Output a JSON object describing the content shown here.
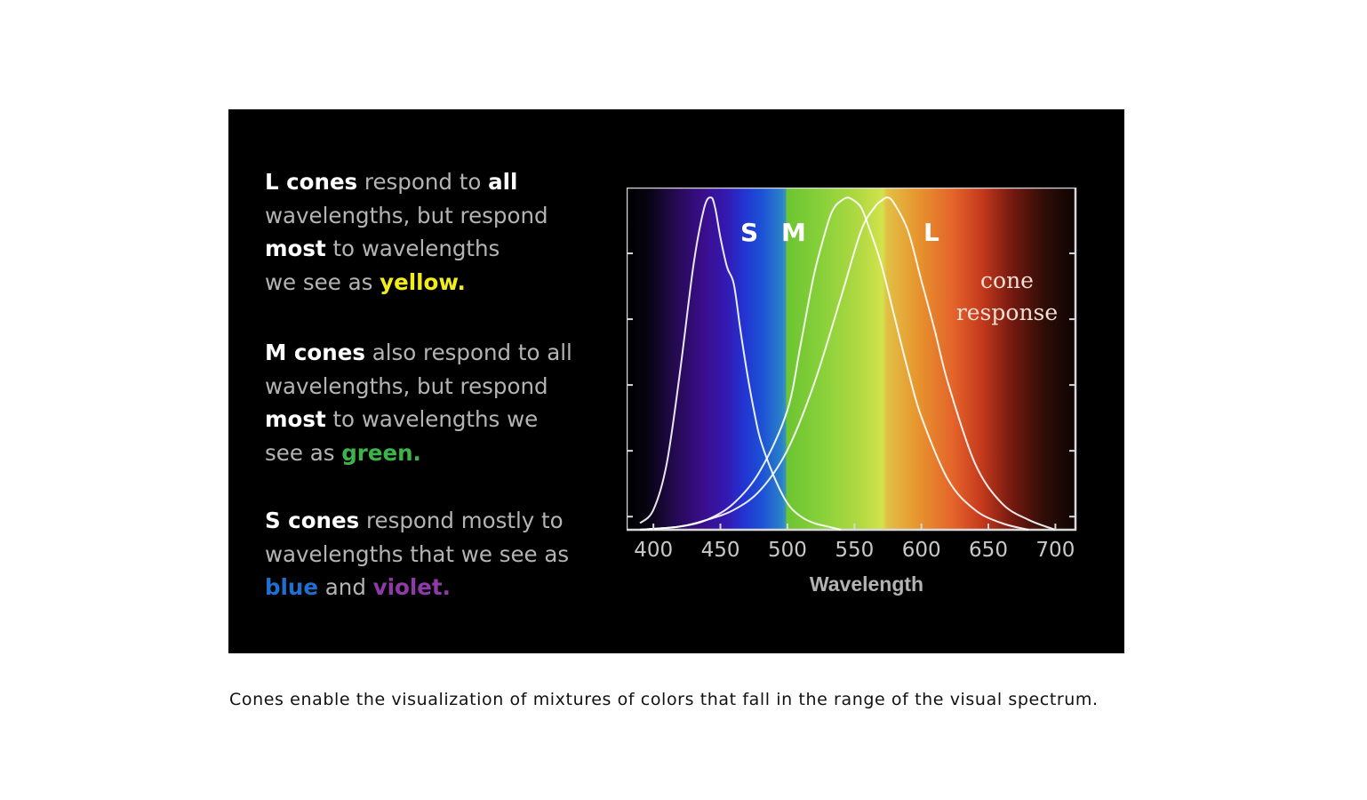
{
  "panel": {
    "l_para": {
      "l1_strong": "L cones",
      "l1_rest": " respond to ",
      "l1_all": "all",
      "l2": "wavelengths, but respond",
      "l3_strong": "most",
      "l3_rest": " to wavelengths",
      "l4_pre": "we see as ",
      "l4_color": "yellow."
    },
    "m_para": {
      "l1_strong": "M cones",
      "l1_rest": " also respond to all",
      "l2": "wavelengths, but respond",
      "l3_strong": "most",
      "l3_rest": " to wavelengths we",
      "l4_pre": "see as ",
      "l4_color": "green."
    },
    "s_para": {
      "l1_strong": "S cones",
      "l1_rest": " respond mostly to",
      "l2": "wavelengths that we see as",
      "l3_blue": "blue",
      "l3_and": " and ",
      "l3_violet": "violet."
    }
  },
  "colors": {
    "yellow": "#f2ec1a",
    "green": "#3cb44b",
    "blue": "#1f6fd1",
    "violet": "#8e3aa8",
    "curve": "#ffffff"
  },
  "chart_data": {
    "type": "line",
    "xlabel": "Wavelength",
    "xticks": [
      400,
      450,
      500,
      550,
      600,
      650,
      700
    ],
    "xlim": [
      380,
      715
    ],
    "ylim": [
      0,
      1.03
    ],
    "labels": {
      "s": "S",
      "m": "M",
      "l": "L",
      "annotation_line1": "cone",
      "annotation_line2": "response"
    },
    "spectrum_background": true,
    "series": [
      {
        "name": "S",
        "x": [
          390,
          400,
          410,
          420,
          430,
          438,
          443,
          446,
          450,
          455,
          460,
          465,
          470,
          475,
          480,
          490,
          500,
          510,
          520,
          530,
          540
        ],
        "y": [
          0.02,
          0.06,
          0.2,
          0.48,
          0.8,
          0.97,
          1.0,
          0.97,
          0.88,
          0.79,
          0.74,
          0.6,
          0.47,
          0.36,
          0.27,
          0.16,
          0.08,
          0.04,
          0.02,
          0.01,
          0.0
        ]
      },
      {
        "name": "M",
        "x": [
          390,
          420,
          440,
          460,
          480,
          500,
          510,
          520,
          530,
          535,
          540,
          545,
          550,
          555,
          560,
          570,
          580,
          590,
          600,
          620,
          640,
          660,
          680
        ],
        "y": [
          0.0,
          0.01,
          0.03,
          0.08,
          0.18,
          0.36,
          0.56,
          0.77,
          0.92,
          0.97,
          0.99,
          1.0,
          0.99,
          0.97,
          0.92,
          0.8,
          0.64,
          0.48,
          0.34,
          0.15,
          0.06,
          0.02,
          0.0
        ]
      },
      {
        "name": "L",
        "x": [
          390,
          420,
          440,
          460,
          480,
          500,
          520,
          540,
          555,
          565,
          570,
          575,
          580,
          590,
          600,
          610,
          620,
          640,
          660,
          680,
          700
        ],
        "y": [
          0.0,
          0.01,
          0.03,
          0.06,
          0.12,
          0.24,
          0.44,
          0.7,
          0.9,
          0.97,
          0.99,
          1.0,
          0.98,
          0.9,
          0.75,
          0.6,
          0.44,
          0.2,
          0.08,
          0.03,
          0.0
        ]
      }
    ]
  },
  "caption": "Cones enable the visualization of mixtures of colors that fall in the range of the visual spectrum."
}
